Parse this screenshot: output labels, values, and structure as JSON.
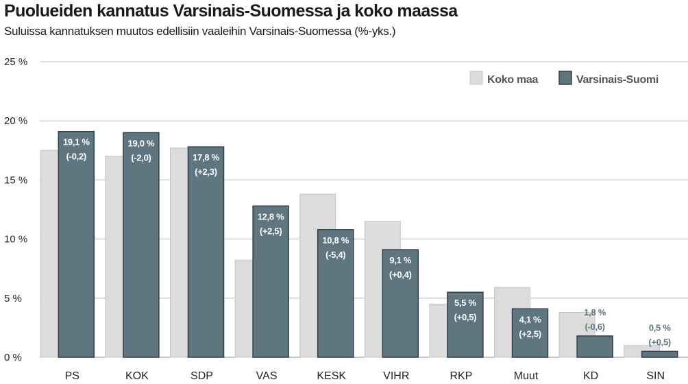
{
  "chart_data": {
    "type": "bar",
    "title": "Puolueiden kannatus Varsinais-Suomessa ja koko maassa",
    "subtitle": "Suluissa kannatuksen muutos edellisiin vaaleihin Varsinais-Suomessa (%-yks.)",
    "categories": [
      "PS",
      "KOK",
      "SDP",
      "VAS",
      "KESK",
      "VIHR",
      "RKP",
      "Muut",
      "KD",
      "SIN"
    ],
    "series": [
      {
        "name": "Koko maa",
        "values": [
          17.5,
          17.0,
          17.7,
          8.2,
          13.8,
          11.5,
          4.5,
          5.9,
          3.8,
          1.0
        ]
      },
      {
        "name": "Varsinais-Suomi",
        "values": [
          19.1,
          19.0,
          17.8,
          12.8,
          10.8,
          9.1,
          5.5,
          4.1,
          1.8,
          0.5
        ]
      }
    ],
    "value_labels": [
      "19,1 %",
      "19,0 %",
      "17,8 %",
      "12,8 %",
      "10,8 %",
      "9,1 %",
      "5,5 %",
      "4,1 %",
      "1,8 %",
      "0,5 %"
    ],
    "change_labels": [
      "(-0,2)",
      "(-2,0)",
      "(+2,3)",
      "(+2,5)",
      "(-5,4)",
      "(+0,4)",
      "(+0,5)",
      "(+2,5)",
      "(-0,6)",
      "(+0,5)"
    ],
    "yticks": [
      "0 %",
      "5 %",
      "10 %",
      "15 %",
      "20 %",
      "25 %"
    ],
    "ylim": [
      0,
      25
    ],
    "grid": true,
    "legend_position": "top-right",
    "colors": {
      "koko_maa": "#dcdcdc",
      "varsinais_suomi": "#5f7680",
      "grid": "#bbbbbb"
    }
  }
}
